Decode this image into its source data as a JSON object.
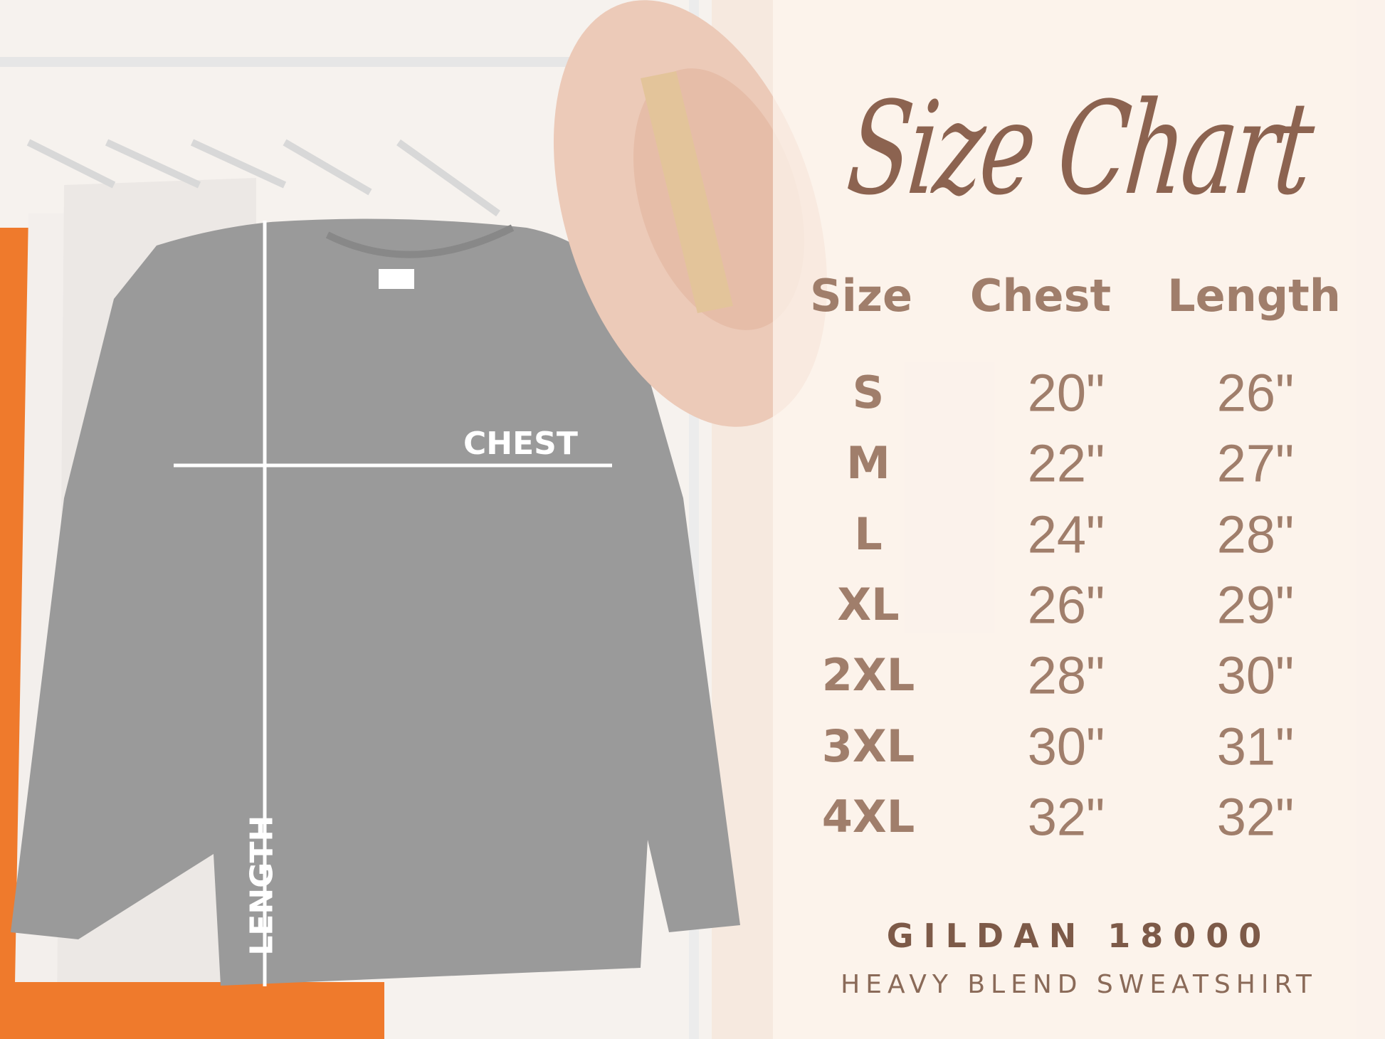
{
  "title": "Size Chart",
  "table": {
    "headers": [
      "Size",
      "Chest",
      "Length"
    ],
    "rows": [
      [
        "S",
        "20\"",
        "26\""
      ],
      [
        "M",
        "22\"",
        "27\""
      ],
      [
        "L",
        "24\"",
        "28\""
      ],
      [
        "XL",
        "26\"",
        "29\""
      ],
      [
        "2XL",
        "28\"",
        "30\""
      ],
      [
        "3XL",
        "30\"",
        "31\""
      ],
      [
        "4XL",
        "32\"",
        "32\""
      ]
    ]
  },
  "product": {
    "brand_model": "GILDAN 18000",
    "description": "HEAVY BLEND SWEATSHIRT"
  },
  "garment_labels": {
    "chest": "CHEST",
    "length": "LENGTH"
  },
  "colors": {
    "text_brown": "#a07e6b",
    "title_brown": "#8c6350",
    "sweatshirt_gray": "#9a9a9a",
    "hat_pink": "#eccab8"
  }
}
